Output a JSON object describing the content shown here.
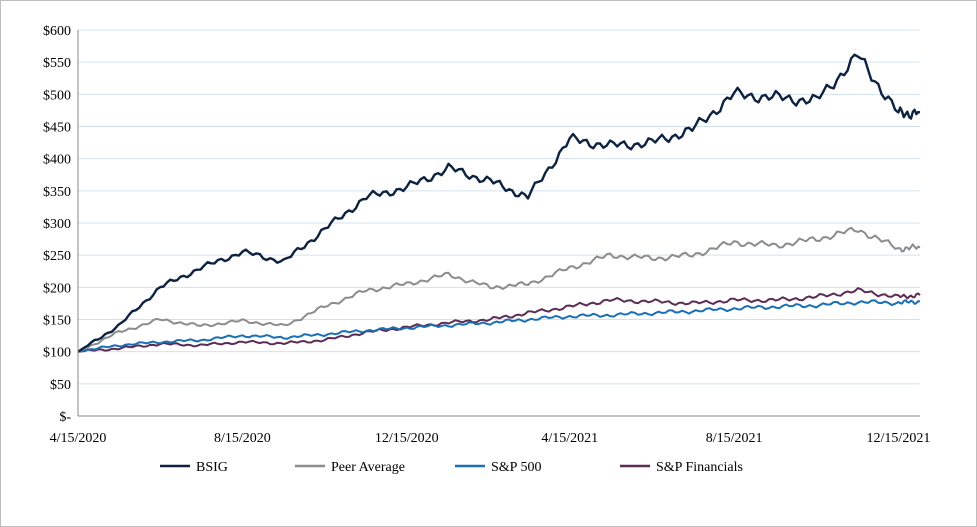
{
  "chart_data": {
    "type": "line",
    "x": [
      "4/15/2020",
      "5/15/2020",
      "6/15/2020",
      "7/15/2020",
      "8/15/2020",
      "9/15/2020",
      "10/15/2020",
      "11/15/2020",
      "12/15/2020",
      "1/15/2021",
      "2/15/2021",
      "3/15/2021",
      "4/15/2021",
      "5/15/2021",
      "6/15/2021",
      "7/15/2021",
      "8/15/2021",
      "9/15/2021",
      "10/15/2021",
      "11/15/2021",
      "12/15/2021",
      "12/31/2021"
    ],
    "x_tick_labels": [
      "4/15/2020",
      "8/15/2020",
      "12/15/2020",
      "4/15/2021",
      "8/15/2021",
      "12/15/2021"
    ],
    "y_tick_labels": [
      "$-",
      "$50",
      "$100",
      "$150",
      "$200",
      "$250",
      "$300",
      "$350",
      "$400",
      "$450",
      "$500",
      "$550",
      "$600"
    ],
    "ylim": [
      0,
      600
    ],
    "grid": "horizontal",
    "legend_position": "bottom",
    "series": [
      {
        "name": "BSIG",
        "color": "#0d2240",
        "values": [
          100,
          140,
          200,
          230,
          255,
          240,
          290,
          340,
          355,
          385,
          365,
          340,
          430,
          420,
          425,
          445,
          500,
          495,
          490,
          560,
          470,
          472
        ]
      },
      {
        "name": "Peer Average",
        "color": "#8c8c8c",
        "values": [
          100,
          130,
          150,
          140,
          148,
          140,
          170,
          195,
          205,
          220,
          200,
          205,
          230,
          250,
          245,
          250,
          270,
          265,
          275,
          290,
          260,
          262
        ]
      },
      {
        "name": "S&P 500",
        "color": "#1a6fb5",
        "values": [
          100,
          110,
          115,
          118,
          125,
          122,
          127,
          133,
          137,
          141,
          145,
          150,
          155,
          157,
          160,
          163,
          167,
          170,
          172,
          177,
          176,
          178
        ]
      },
      {
        "name": "S&P Financials",
        "color": "#5b2d55",
        "values": [
          100,
          105,
          112,
          110,
          115,
          113,
          118,
          130,
          138,
          145,
          150,
          160,
          170,
          180,
          178,
          175,
          180,
          180,
          185,
          195,
          185,
          188
        ]
      }
    ]
  }
}
